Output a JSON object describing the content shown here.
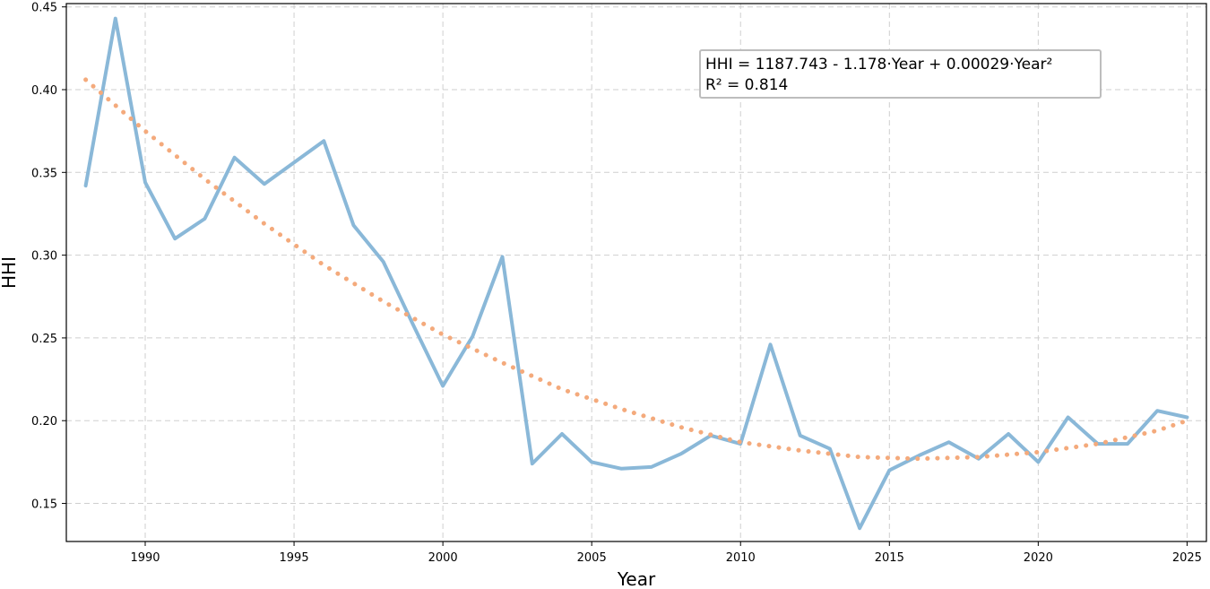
{
  "chart_data": {
    "type": "line",
    "xlabel": "Year",
    "ylabel": "HHI",
    "xlim": [
      1987.35,
      2025.65
    ],
    "ylim": [
      0.127,
      0.452
    ],
    "x_ticks": [
      1990,
      1995,
      2000,
      2005,
      2010,
      2015,
      2020,
      2025
    ],
    "y_ticks": [
      0.15,
      0.2,
      0.25,
      0.3,
      0.35,
      0.4,
      0.45
    ],
    "y_tick_labels": [
      "0.15",
      "0.20",
      "0.25",
      "0.30",
      "0.35",
      "0.40",
      "0.45"
    ],
    "grid": true,
    "series": [
      {
        "style": "solid",
        "color": "#8ab8d8",
        "x": [
          1988,
          1989,
          1990,
          1991,
          1992,
          1993,
          1994,
          1995,
          1996,
          1997,
          1998,
          1999,
          2000,
          2001,
          2002,
          2003,
          2004,
          2005,
          2006,
          2007,
          2008,
          2009,
          2010,
          2011,
          2012,
          2013,
          2014,
          2015,
          2016,
          2017,
          2018,
          2019,
          2020,
          2021,
          2022,
          2023,
          2024,
          2025
        ],
        "values": [
          0.342,
          0.443,
          0.344,
          0.31,
          0.322,
          0.359,
          0.343,
          0.356,
          0.369,
          0.318,
          0.296,
          0.258,
          0.221,
          0.251,
          0.299,
          0.174,
          0.192,
          0.175,
          0.171,
          0.172,
          0.18,
          0.191,
          0.186,
          0.246,
          0.191,
          0.183,
          0.135,
          0.17,
          0.179,
          0.187,
          0.177,
          0.192,
          0.175,
          0.202,
          0.186,
          0.186,
          0.206,
          0.202
        ]
      },
      {
        "style": "dotted",
        "color": "#f4aa7c",
        "x": [
          1988,
          1990,
          1992,
          1994,
          1996,
          1998,
          2000,
          2002,
          2004,
          2006,
          2008,
          2010,
          2012,
          2014,
          2016,
          2018,
          2020,
          2022,
          2024,
          2025
        ],
        "values": [
          0.406,
          0.375,
          0.346,
          0.319,
          0.294,
          0.272,
          0.252,
          0.235,
          0.219,
          0.207,
          0.196,
          0.187,
          0.182,
          0.178,
          0.177,
          0.178,
          0.181,
          0.186,
          0.194,
          0.2
        ]
      }
    ],
    "annotation": {
      "line1": "HHI = 1187.743 - 1.178·Year + 0.00029·Year²",
      "line2": "R² = 0.814",
      "placement": "top-right"
    }
  }
}
